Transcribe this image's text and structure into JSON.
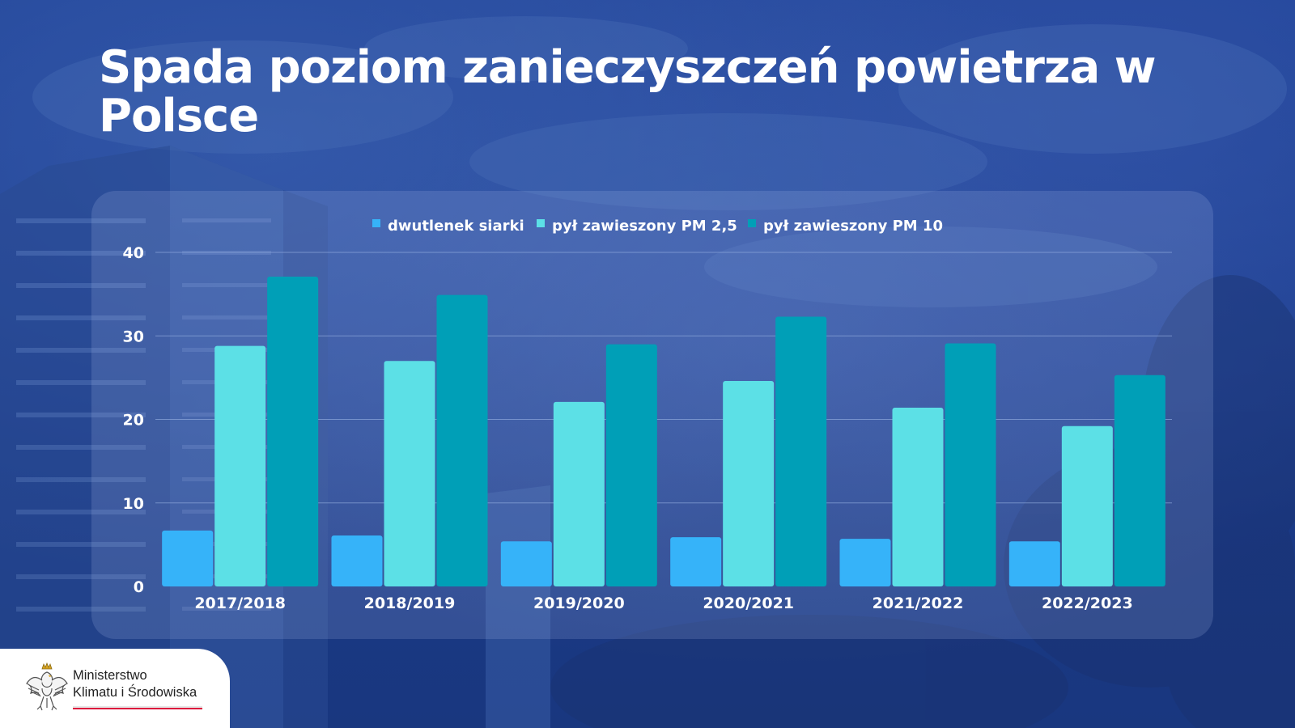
{
  "title": "Spada poziom zanieczyszczeń powietrza w Polsce",
  "colors": {
    "so2": "#36b3f9",
    "pm25": "#5ce0e6",
    "pm10": "#009fb7",
    "gridline": "#8ea8da",
    "text": "#ffffff"
  },
  "chart_data": {
    "type": "bar",
    "title": "",
    "xlabel": "",
    "ylabel": "",
    "ylim": [
      0,
      40
    ],
    "yticks": [
      0,
      10,
      20,
      30,
      40
    ],
    "grid": true,
    "legend_position": "top-center",
    "categories": [
      "2017/2018",
      "2018/2019",
      "2019/2020",
      "2020/2021",
      "2021/2022",
      "2022/2023"
    ],
    "series": [
      {
        "name": "dwutlenek siarki",
        "color": "#36b3f9",
        "values": [
          6.7,
          6.1,
          5.4,
          5.9,
          5.7,
          5.4
        ]
      },
      {
        "name": "pył zawieszony PM 2,5",
        "color": "#5ce0e6",
        "values": [
          28.8,
          27.0,
          22.1,
          24.6,
          21.4,
          19.2
        ]
      },
      {
        "name": "pył zawieszony PM 10",
        "color": "#009fb7",
        "values": [
          37.1,
          34.9,
          29.0,
          32.3,
          29.1,
          25.3
        ]
      }
    ]
  },
  "footer": {
    "ministry_line1": "Ministerstwo",
    "ministry_line2": "Klimatu i Środowiska",
    "emblem_icon": "polish-eagle-emblem"
  }
}
